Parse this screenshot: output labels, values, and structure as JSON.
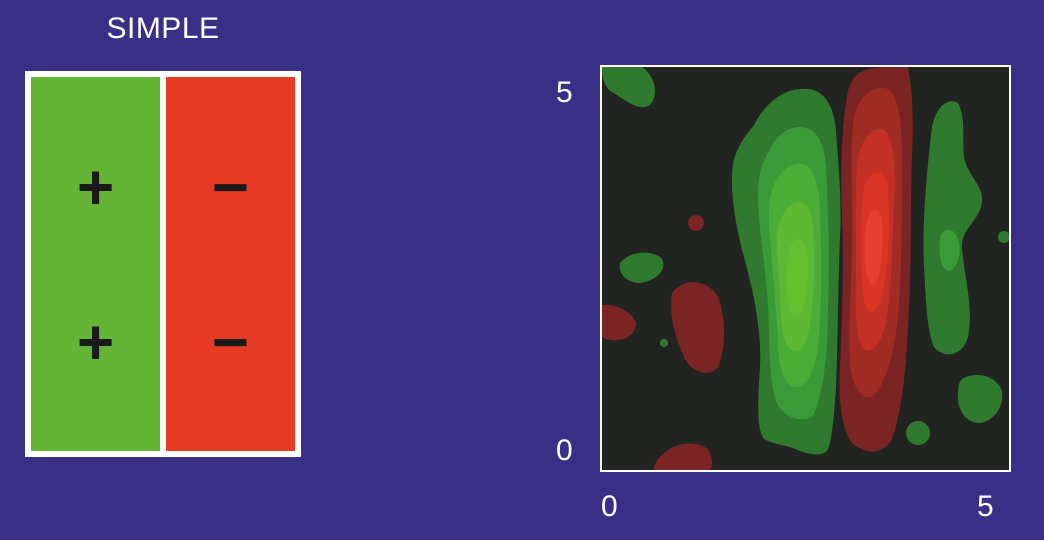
{
  "schematic": {
    "title": "SIMPLE",
    "on_region": {
      "symbol": "+",
      "color": "#64b536",
      "count": 2
    },
    "off_region": {
      "symbol": "−",
      "color": "#e53a23",
      "count": 2
    }
  },
  "receptive_field_map": {
    "x_ticks": [
      "0",
      "5"
    ],
    "y_ticks": [
      "0",
      "5"
    ],
    "background_color": "#212420",
    "on_color": "#5db832",
    "off_color": "#e53022"
  },
  "colors": {
    "background": "#3a2f86",
    "frame": "#ffffff",
    "text": "#ffffff"
  }
}
